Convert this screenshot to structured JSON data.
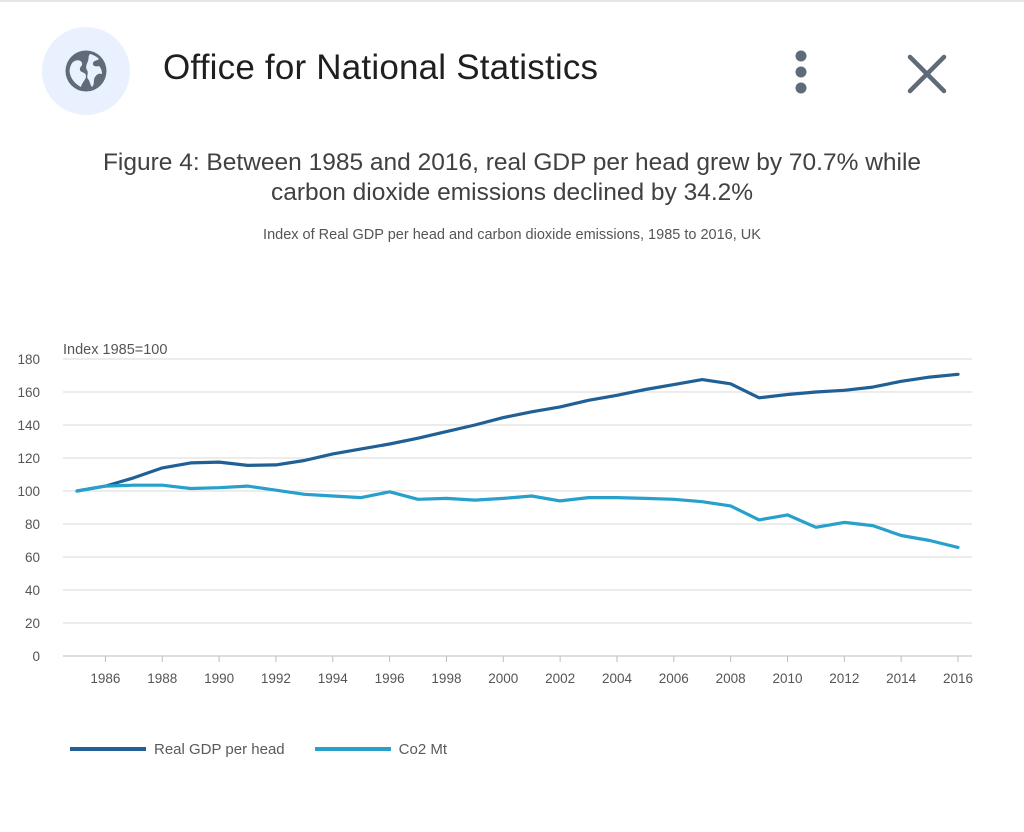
{
  "header": {
    "site_title": "Office for National Statistics",
    "icons": [
      "globe-icon",
      "more-vert-icon",
      "close-icon"
    ]
  },
  "colors": {
    "gdp": "#206095",
    "co2": "#27a0cc",
    "grid": "#d9d9d9",
    "axis": "#bebebe",
    "globe_bg": "#e8f1fd",
    "globe": "#5f6b78"
  },
  "chart_data": {
    "type": "line",
    "title": "Figure 4: Between 1985 and 2016, real GDP per head grew by 70.7% while carbon dioxide emissions declined by 34.2%",
    "title_lines": [
      "Figure 4: Between 1985 and 2016, real GDP per head grew by 70.7% while",
      "carbon dioxide emissions declined by 34.2%"
    ],
    "subtitle": "Index of Real GDP per head and carbon dioxide emissions, 1985 to 2016, UK",
    "ylabel": "Index 1985=100",
    "xlabel": "",
    "ylim": [
      0,
      180
    ],
    "yticks": [
      0,
      20,
      40,
      60,
      80,
      100,
      120,
      140,
      160,
      180
    ],
    "xticks": [
      1986,
      1988,
      1990,
      1992,
      1994,
      1996,
      1998,
      2000,
      2002,
      2004,
      2006,
      2008,
      2010,
      2012,
      2014,
      2016
    ],
    "x": [
      1985,
      1986,
      1987,
      1988,
      1989,
      1990,
      1991,
      1992,
      1993,
      1994,
      1995,
      1996,
      1997,
      1998,
      1999,
      2000,
      2001,
      2002,
      2003,
      2004,
      2005,
      2006,
      2007,
      2008,
      2009,
      2010,
      2011,
      2012,
      2013,
      2014,
      2015,
      2016
    ],
    "grid": true,
    "legend_position": "bottom-left",
    "series": [
      {
        "name": "Real GDP per head",
        "color": "#206095",
        "values": [
          100,
          103,
          108,
          114,
          117,
          117.5,
          115.5,
          115.8,
          118.5,
          122.5,
          125.5,
          128.5,
          132,
          136,
          140,
          144.5,
          148,
          151,
          155,
          158,
          161.5,
          164.5,
          167.5,
          165,
          156.5,
          158.5,
          160,
          161,
          163,
          166.5,
          169,
          170.7
        ]
      },
      {
        "name": "Co2 Mt",
        "color": "#27a0cc",
        "values": [
          100,
          103,
          103.5,
          103.5,
          101.5,
          102,
          103,
          100.5,
          98,
          97,
          96,
          99.5,
          95,
          95.5,
          94.5,
          95.5,
          97,
          94,
          96,
          96,
          95.5,
          95,
          93.5,
          91,
          82.5,
          85.5,
          78,
          81,
          79,
          73,
          70,
          65.8
        ]
      }
    ]
  }
}
